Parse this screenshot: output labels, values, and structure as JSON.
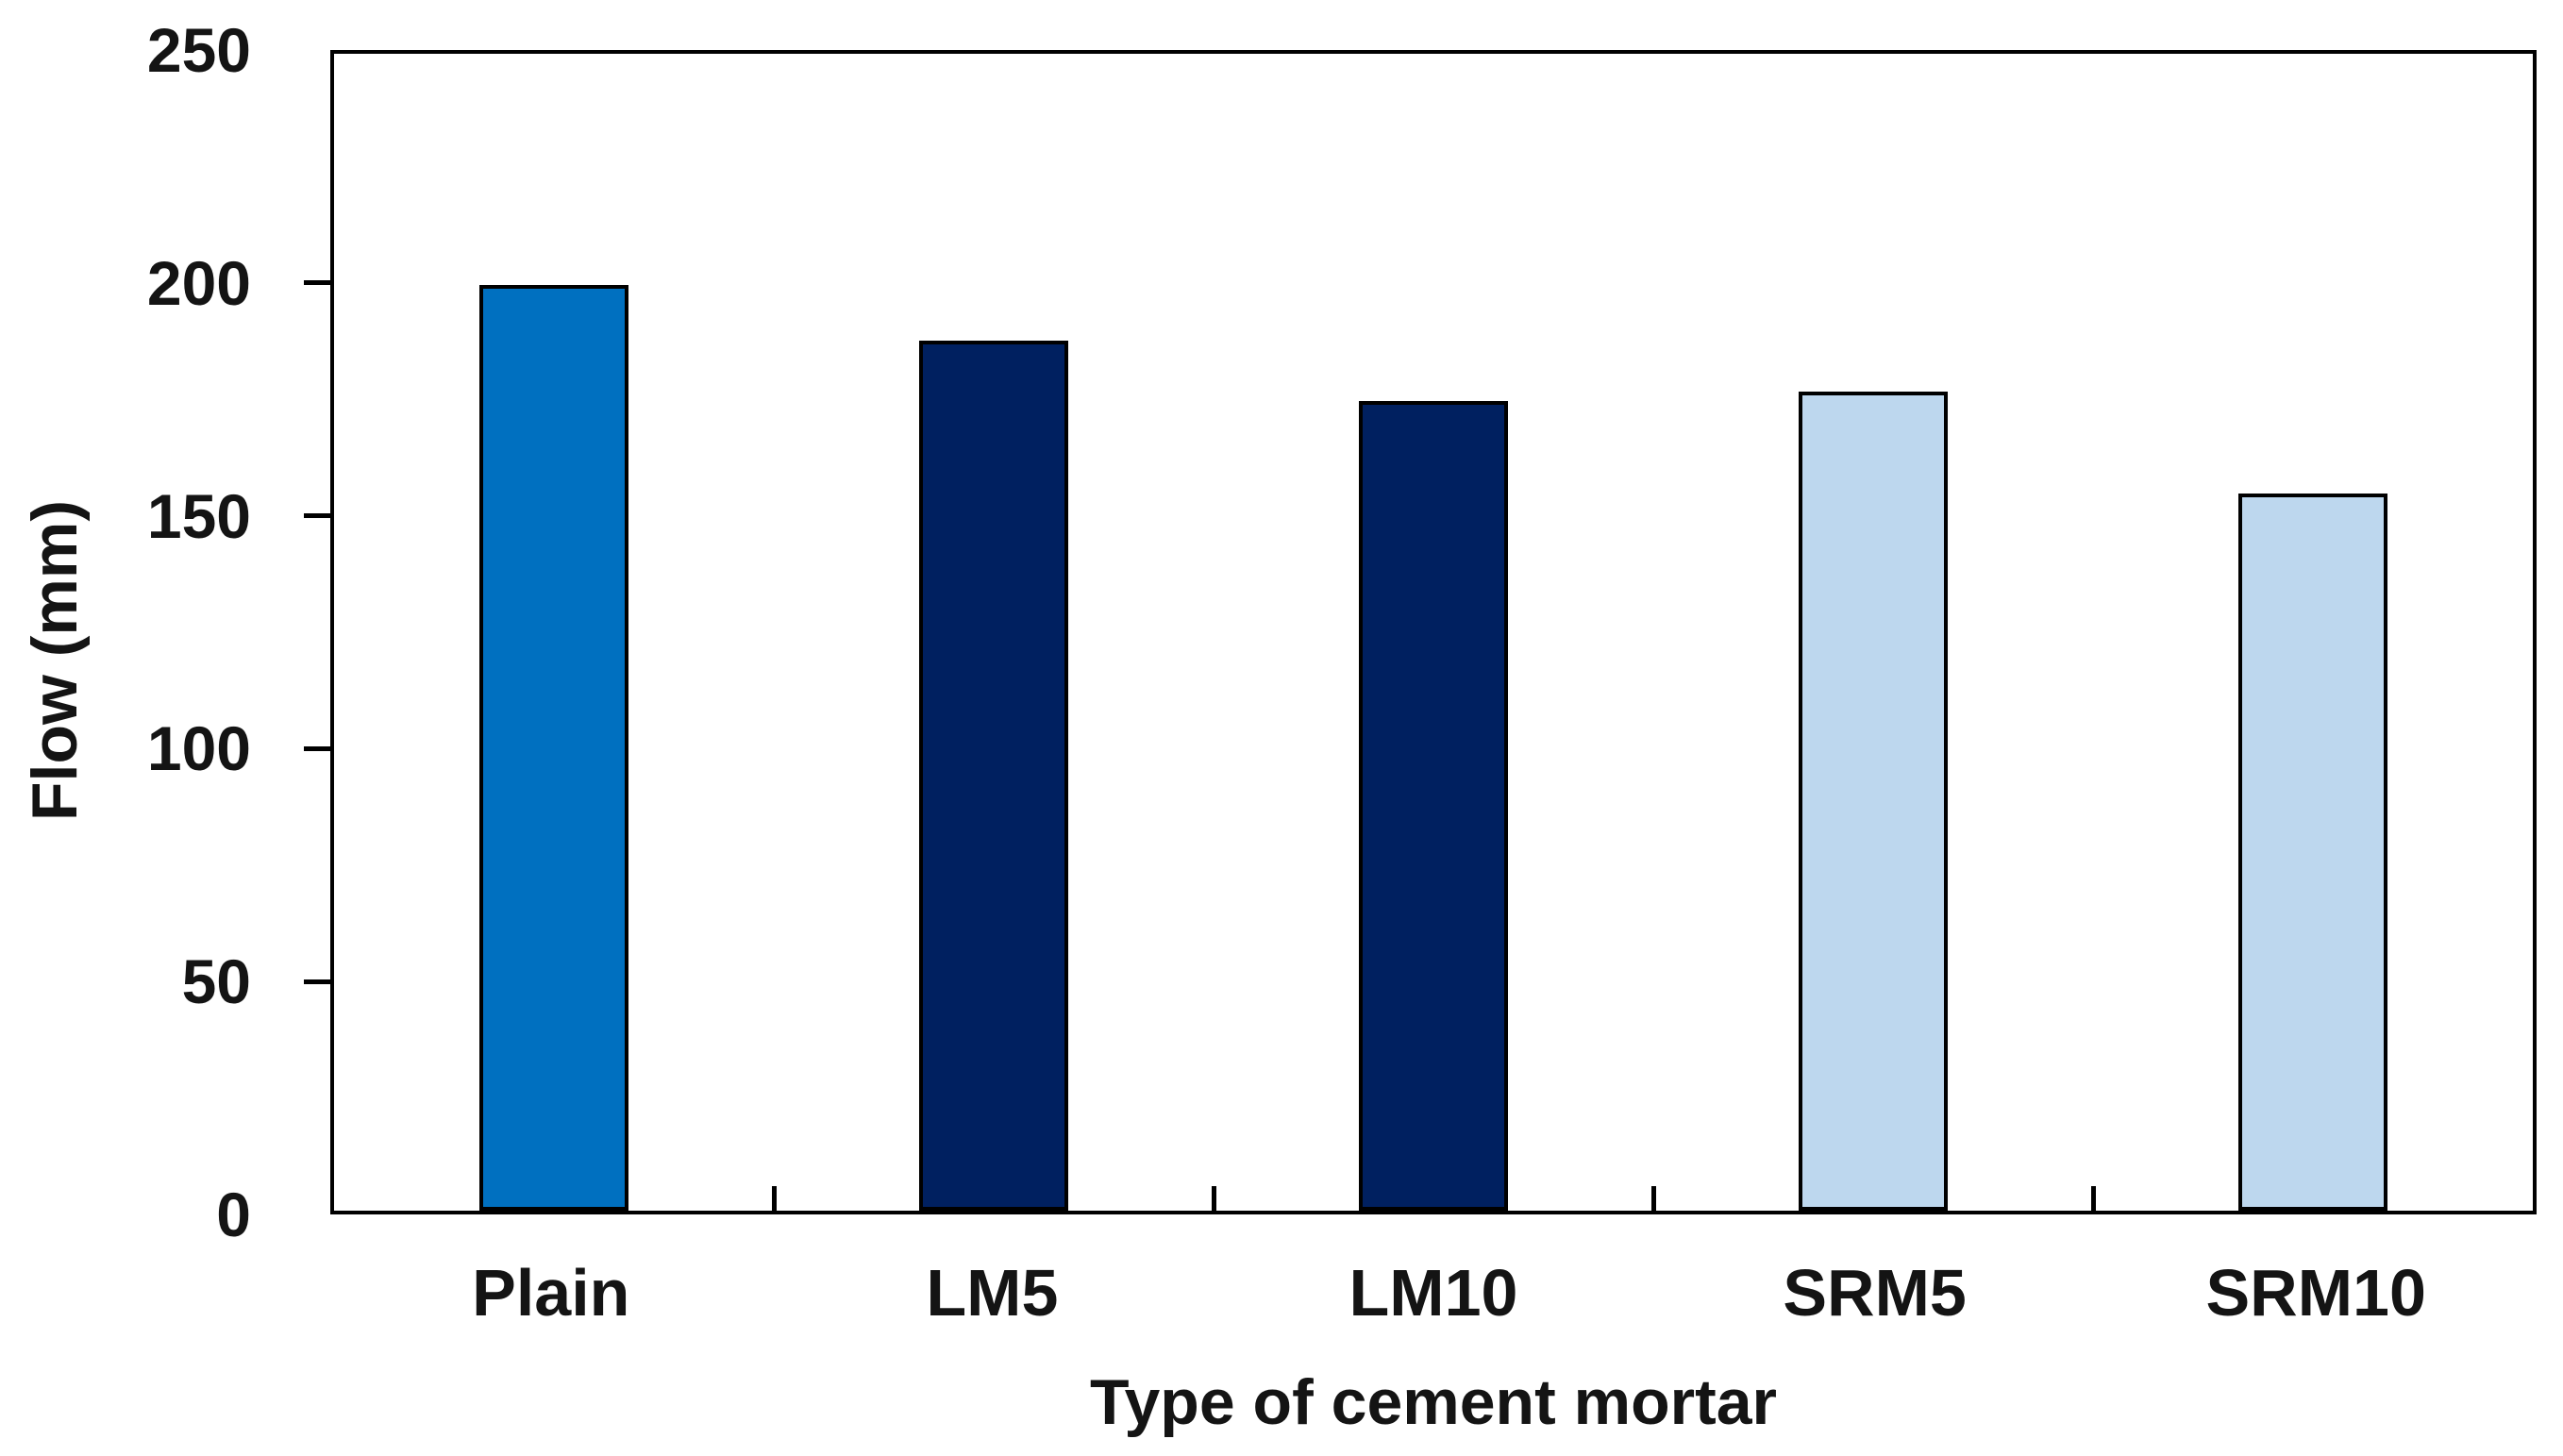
{
  "chart_data": {
    "type": "bar",
    "title": "",
    "xlabel": "Type of cement mortar",
    "ylabel": "Flow (mm)",
    "categories": [
      "Plain",
      "LM5",
      "LM10",
      "SRM5",
      "SRM10"
    ],
    "values": [
      200,
      188,
      175,
      177,
      155
    ],
    "bar_colors": [
      "#0070C0",
      "#002060",
      "#002060",
      "#BDD7EE",
      "#BDD7EE"
    ],
    "bar_border_color": "#000000",
    "ylim": [
      0,
      250
    ],
    "yticks": [
      0,
      50,
      100,
      150,
      200,
      250
    ],
    "grid": false,
    "legend_position": "none",
    "plot_frame": true,
    "axis_text_color": "#141414"
  }
}
